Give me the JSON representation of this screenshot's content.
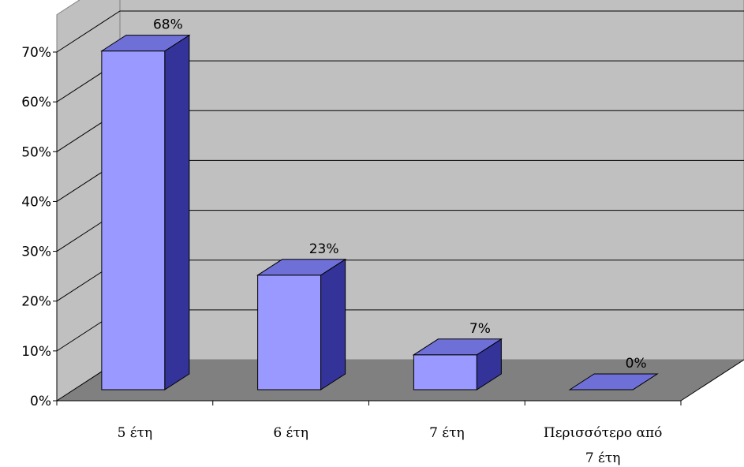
{
  "chart_data": {
    "type": "bar",
    "style": "3d-column",
    "categories": [
      [
        "5 έτη"
      ],
      [
        "6 έτη"
      ],
      [
        "7 έτη"
      ],
      [
        "Περισσότερο από",
        "7 έτη"
      ]
    ],
    "values": [
      68,
      23,
      7,
      0
    ],
    "data_labels": [
      "68%",
      "23%",
      "7%",
      "0%"
    ],
    "y_ticks": [
      "0%",
      "10%",
      "20%",
      "30%",
      "40%",
      "50%",
      "60%",
      "70%"
    ],
    "ylim": [
      0,
      70
    ],
    "grid": true,
    "legend": "none",
    "colors": {
      "bar_front": "#9999ff",
      "bar_top": "#6f6fd8",
      "bar_side": "#333399",
      "back_wall": "#c0c0c0",
      "side_wall": "#c0c0c0",
      "floor": "#808080",
      "gridline": "#000000"
    }
  }
}
